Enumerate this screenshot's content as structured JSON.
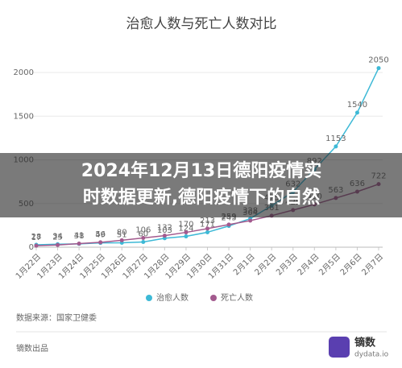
{
  "chart_data": {
    "type": "line",
    "title": "治愈人数与死亡人数对比",
    "categories": [
      "1月22日",
      "1月23日",
      "1月24日",
      "1月25日",
      "1月26日",
      "1月27日",
      "1月28日",
      "1月29日",
      "1月30日",
      "1月31日",
      "2月1日",
      "2月2日",
      "2月3日",
      "2月4日",
      "2月5日",
      "2月6日",
      "2月7日"
    ],
    "series": [
      {
        "name": "治愈人数",
        "color": "#3db9d6",
        "values": [
          28,
          34,
          38,
          49,
          51,
          60,
          103,
          124,
          171,
          243,
          328,
          475,
          632,
          892,
          1153,
          1540,
          2050
        ]
      },
      {
        "name": "死亡人数",
        "color": "#a35a8e",
        "values": [
          17,
          25,
          41,
          56,
          80,
          106,
          132,
          170,
          213,
          259,
          304,
          361,
          425,
          490,
          563,
          636,
          722
        ]
      }
    ],
    "ylim": [
      0,
      2000
    ],
    "yticks": [
      0,
      500,
      1000,
      1500,
      2000
    ],
    "grid": true,
    "source": "数据来源：国家卫健委",
    "producer": "镝数出品",
    "logo": {
      "name": "镝数",
      "site": "dydata.io"
    },
    "banner": [
      "2024年12月13日德阳疫情实",
      "时数据更新,德阳疫情下的自然"
    ]
  }
}
